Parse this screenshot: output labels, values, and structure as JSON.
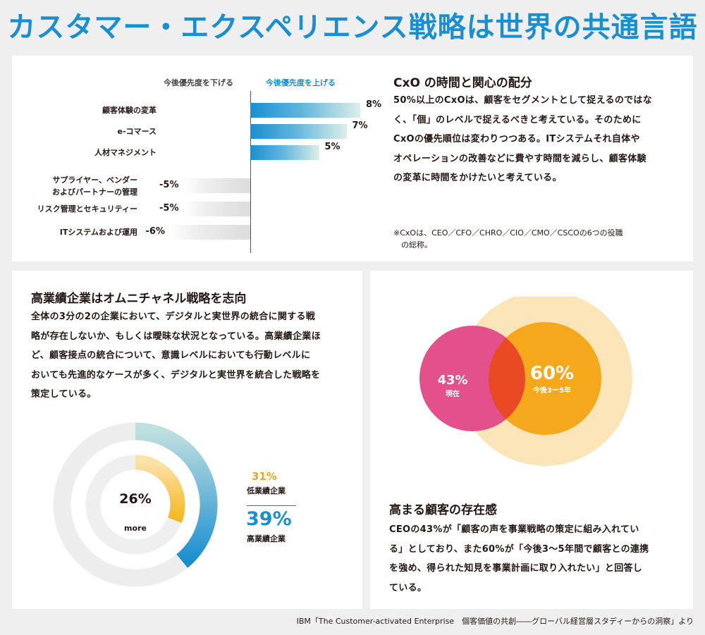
{
  "page": {
    "title": "カスタマー・エクスペリエンス戦略は世界の共通言語",
    "source": "IBM「The Customer-activated Enterprise　個客価値の共創――グローバル経営層スタディーからの洞察」より"
  },
  "colors": {
    "title_blue": "#1a8fd0",
    "bar_positive": "#1a8fd0",
    "bar_negative": "#dcdcdc",
    "donut_outer": "#1a8fd0",
    "donut_inner": "#f6b61e",
    "venn_now": "#e4508c",
    "venn_future": "#f5a81c",
    "venn_future_halo": "#fbe5b8",
    "venn_overlap": "#e84a23"
  },
  "cxo_section": {
    "heading": "CxO の時間と関心の配分",
    "body_lines": [
      "50%以上のCxOは、顧客をセグメントとして捉えるのではな",
      "く、「個」のレベルで捉えるべきと考えている。そのために",
      "CxOの優先順位は変わりつつある。ITシステムそれ自体や",
      "オペレーションの改善などに費やす時間を減らし、顧客体験",
      "の変革に時間をかけたいと考えている。"
    ],
    "note_lines": [
      "※CxOは、CEO／CFO／CHRO／CIO／CMO／CSCOの6つの役職",
      "の総称。"
    ]
  },
  "omni_section": {
    "heading": "高業績企業はオムニチャネル戦略を志向",
    "body_lines": [
      "全体の3分の2の企業において、デジタルと実世界の統合に関する戦",
      "略が存在しないか、もしくは曖昧な状況となっている。高業績企業ほ",
      "ど、顧客接点の統合について、意識レベルにおいても行動レベルに",
      "おいても先進的なケースが多く、デジタルと実世界を統合した戦略を",
      "策定している。"
    ]
  },
  "presence_section": {
    "heading": "高まる顧客の存在感",
    "body_lines": [
      "CEOの43%が「顧客の声を事業戦略の策定に組み入れてい",
      "る」としており、また60%が「今後3～5年間で顧客との連携",
      "を強め、得られた知見を事業計画に取り入れたい」と回答し",
      "ている。"
    ]
  },
  "chart_data": [
    {
      "type": "bar",
      "orientation": "horizontal",
      "headers": {
        "negative": "今後優先度を下げる",
        "positive": "今後優先度を上げる"
      },
      "categories": [
        "顧客体験の変革",
        "e-コマース",
        "人材マネジメント",
        "サプライヤー、ベンダー\nおよびパートナーの管理",
        "リスク管理とセキュリティー",
        "ITシステムおよび運用"
      ],
      "values": [
        8,
        7,
        5,
        -5,
        -5,
        -6
      ],
      "value_labels": [
        "8%",
        "7%",
        "5%",
        "-5%",
        "-5%",
        "-6%"
      ],
      "xlim": [
        -8,
        8
      ]
    },
    {
      "type": "pie",
      "variant": "concentric-donut",
      "center_value": "26%",
      "center_text": "more",
      "rings": [
        {
          "name": "高業績企業",
          "value": 39,
          "label": "39%",
          "ring": "outer"
        },
        {
          "name": "低業績企業",
          "value": 31,
          "label": "31%",
          "ring": "inner"
        }
      ]
    },
    {
      "type": "venn",
      "sets": [
        {
          "name": "現在",
          "value": 43,
          "label": "43%"
        },
        {
          "name": "今後3ー5年",
          "value": 60,
          "label": "60%"
        }
      ]
    }
  ]
}
